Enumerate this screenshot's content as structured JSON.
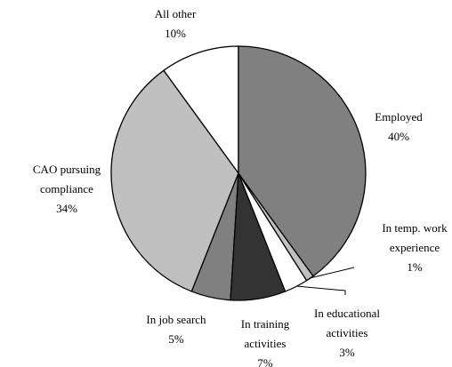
{
  "chart_data": {
    "type": "pie",
    "categories": [
      "Employed",
      "In temp. work experience",
      "In educational activities",
      "In training activities",
      "In job search",
      "CAO pursuing compliance",
      "All other"
    ],
    "values": [
      40,
      1,
      3,
      7,
      5,
      34,
      10
    ],
    "value_labels": [
      "40%",
      "1%",
      "3%",
      "7%",
      "5%",
      "34%",
      "10%"
    ],
    "colors": [
      "#808080",
      "#c0c0c0",
      "#ffffff",
      "#333333",
      "#808080",
      "#c0c0c0",
      "#ffffff"
    ]
  }
}
